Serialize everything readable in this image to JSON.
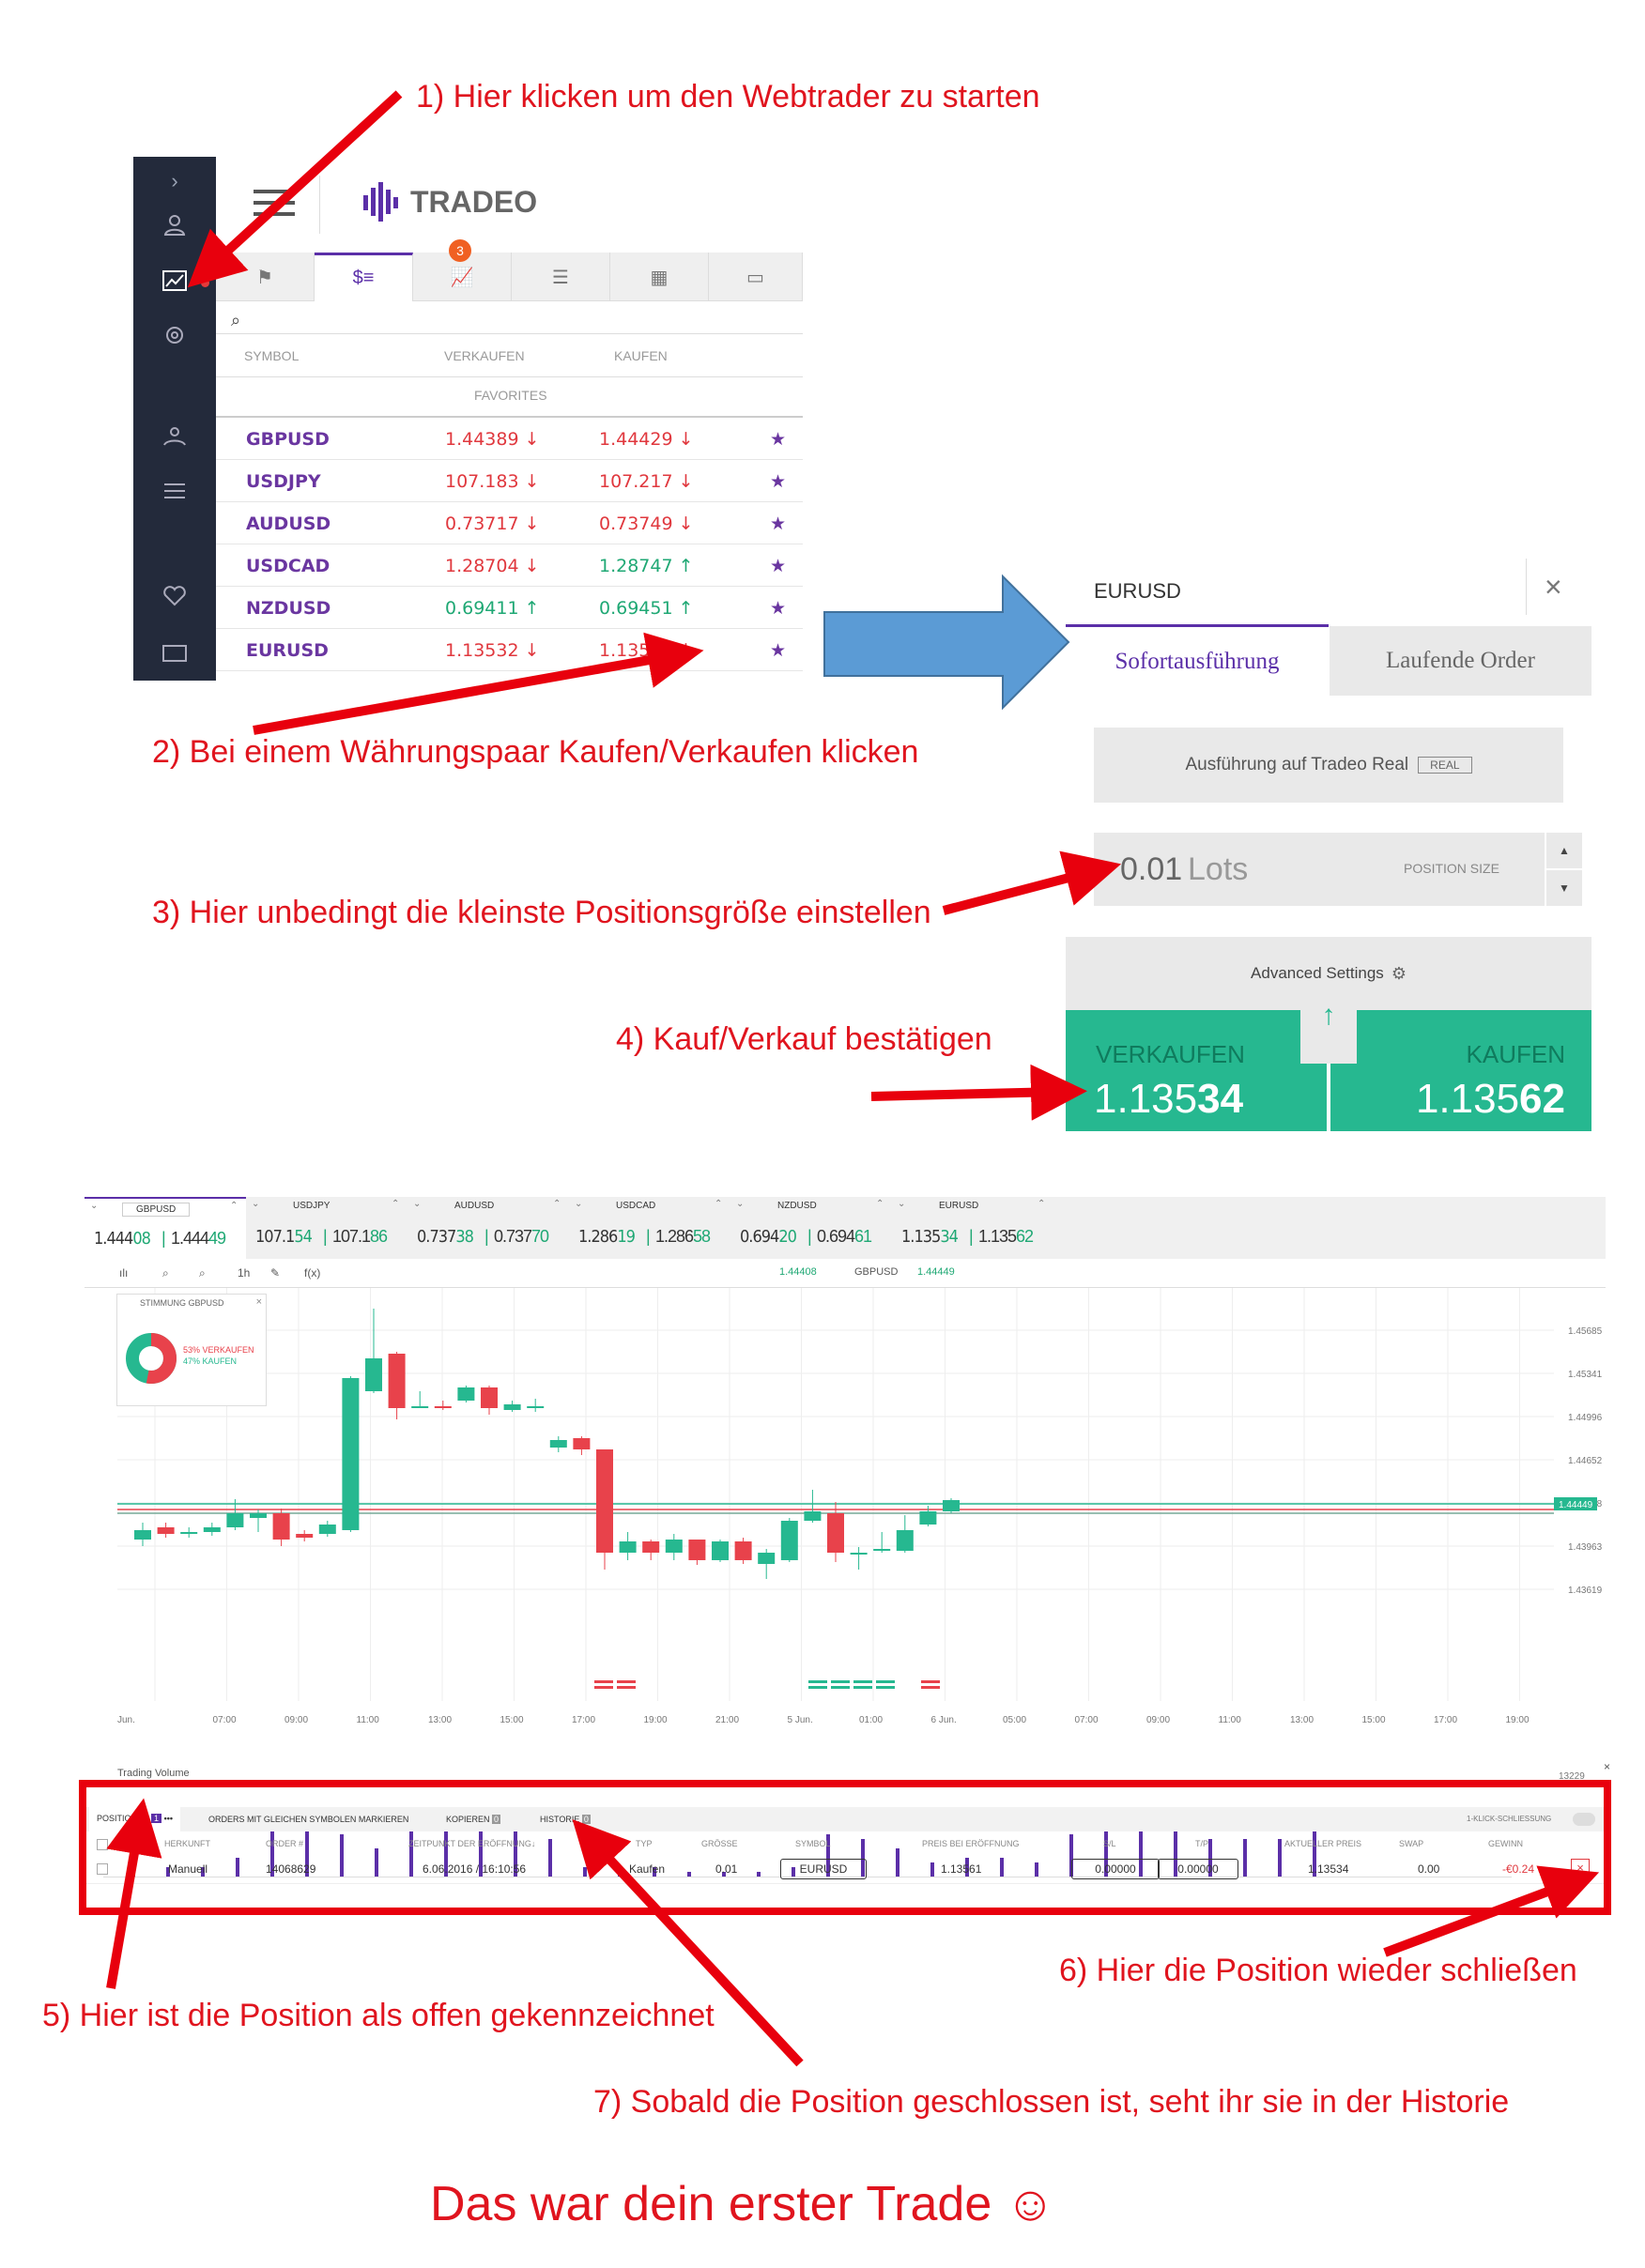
{
  "annotations": {
    "step1": "1) Hier klicken um den Webtrader zu starten",
    "step2": "2) Bei einem Währungspaar Kaufen/Verkaufen klicken",
    "step3": "3) Hier unbedingt die kleinste Positionsgröße einstellen",
    "step4": "4) Kauf/Verkauf bestätigen",
    "step5": "5) Hier ist die Position als offen gekennzeichnet",
    "step6": "6) Hier die Position wieder schließen",
    "step7": "7) Sobald die Position geschlossen ist, seht ihr sie in der Historie",
    "closing": "Das war dein erster Trade ☺"
  },
  "app": {
    "brand": "TRADEO",
    "badge": "3"
  },
  "watchlist": {
    "headers": {
      "symbol": "SYMBOL",
      "sell": "VERKAUFEN",
      "buy": "KAUFEN"
    },
    "section": "FAVORITES",
    "rows": [
      {
        "symbol": "GBPUSD",
        "sell": "1.44389 ↓",
        "buy": "1.44429 ↓",
        "sell_dir": "down",
        "buy_dir": "down"
      },
      {
        "symbol": "USDJPY",
        "sell": "107.183 ↓",
        "buy": "107.217 ↓",
        "sell_dir": "down",
        "buy_dir": "down"
      },
      {
        "symbol": "AUDUSD",
        "sell": "0.73717 ↓",
        "buy": "0.73749 ↓",
        "sell_dir": "down",
        "buy_dir": "down"
      },
      {
        "symbol": "USDCAD",
        "sell": "1.28704 ↓",
        "buy": "1.28747 ↑",
        "sell_dir": "down",
        "buy_dir": "up"
      },
      {
        "symbol": "NZDUSD",
        "sell": "0.69411 ↑",
        "buy": "0.69451 ↑",
        "sell_dir": "up",
        "buy_dir": "up"
      },
      {
        "symbol": "EURUSD",
        "sell": "1.13532 ↓",
        "buy": "1.13562 ↓",
        "sell_dir": "down",
        "buy_dir": "down"
      }
    ]
  },
  "order_panel": {
    "symbol": "EURUSD",
    "tab_instant": "Sofortausführung",
    "tab_pending": "Laufende Order",
    "execution": "Ausführung auf Tradeo Real",
    "execution_badge": "REAL",
    "lots_value": "0.01",
    "lots_unit": "Lots",
    "position_size_label": "POSITION SIZE",
    "advanced": "Advanced Settings",
    "sell_label": "VERKAUFEN",
    "sell_price_a": "1.135",
    "sell_price_b": "34",
    "buy_label": "KAUFEN",
    "buy_price_a": "1.135",
    "buy_price_b": "62"
  },
  "webtrader": {
    "pairs": [
      {
        "name": "GBPUSD",
        "bid_a": "1.444",
        "bid_b": "08",
        "ask_a": "1.444",
        "ask_b": "49"
      },
      {
        "name": "USDJPY",
        "bid_a": "107.1",
        "bid_b": "54",
        "ask_a": "107.1",
        "ask_b": "86"
      },
      {
        "name": "AUDUSD",
        "bid_a": "0.737",
        "bid_b": "38",
        "ask_a": "0.737",
        "ask_b": "70"
      },
      {
        "name": "USDCAD",
        "bid_a": "1.286",
        "bid_b": "19",
        "ask_a": "1.286",
        "ask_b": "58"
      },
      {
        "name": "NZDUSD",
        "bid_a": "0.694",
        "bid_b": "20",
        "ask_a": "0.694",
        "ask_b": "61"
      },
      {
        "name": "EURUSD",
        "bid_a": "1.135",
        "bid_b": "34",
        "ask_a": "1.135",
        "ask_b": "62"
      }
    ],
    "toolbar": {
      "timeframe": "1h",
      "fx": "f(x)",
      "price_left": "1.44408",
      "symbol": "GBPUSD",
      "price_right": "1.44449"
    },
    "sentiment": {
      "title": "STIMMUNG GBPUSD",
      "sell": "53% VERKAUFEN",
      "buy": "47% KAUFEN",
      "sell_pct": 53,
      "buy_pct": 47
    },
    "y_ticks": [
      "1.45685",
      "1.45341",
      "1.44996",
      "1.44652",
      "1.44308",
      "1.43963",
      "1.43619"
    ],
    "current_price": "1.44449",
    "x_ticks": [
      "Jun.",
      "07:00",
      "09:00",
      "11:00",
      "13:00",
      "15:00",
      "17:00",
      "19:00",
      "21:00",
      "5 Jun.",
      "01:00",
      "6 Jun.",
      "05:00",
      "07:00",
      "09:00",
      "11:00",
      "13:00",
      "15:00",
      "17:00",
      "19:00"
    ],
    "volume_title": "Trading Volume",
    "volume_max": "13229",
    "volume_min": "0",
    "tabs": {
      "positions": "POSITIONEN",
      "positions_count": "1",
      "same_symbol": "ORDERS MIT GLEICHEN SYMBOLEN MARKIEREN",
      "copy": "KOPIEREN",
      "copy_count": "0",
      "history": "HISTORIE",
      "history_count": "0",
      "one_click": "1-KLICK-SCHLIESSUNG"
    },
    "columns": [
      "HERKUNFT",
      "ORDER #",
      "ZEITPUNKT DER ERÖFFNUNG↓",
      "TYP",
      "GRÖSSE",
      "SYMBOL",
      "PREIS BEI ERÖFFNUNG",
      "S/L",
      "T/P",
      "AKTUELLER PREIS",
      "SWAP",
      "GEWINN"
    ],
    "position": {
      "origin": "Manuell",
      "order": "14068629",
      "time": "6.06.2016 / 16:10:56",
      "type": "Kaufen",
      "size": "0.01",
      "symbol": "EURUSD",
      "open_price": "1.13561",
      "sl": "0.00000",
      "tp": "0.00000",
      "current": "1.13534",
      "swap": "0.00",
      "profit": "-€0.24"
    }
  }
}
